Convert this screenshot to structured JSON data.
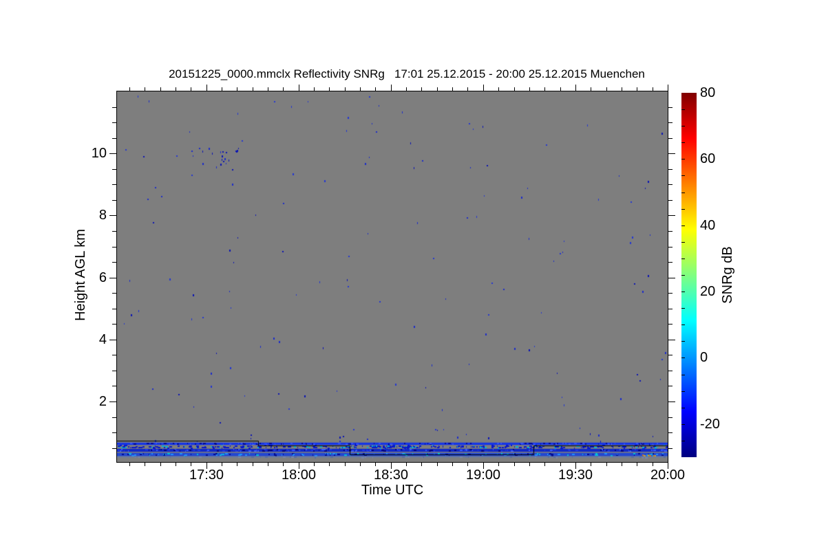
{
  "title": "20151225_0000.mmclx Reflectivity SNRg   17:01 25.12.2015 - 20:00 25.12.2015 Muenchen",
  "chart_data": {
    "type": "heatmap",
    "title": "20151225_0000.mmclx Reflectivity SNRg   17:01 25.12.2015 - 20:00 25.12.2015 Muenchen",
    "file": "20151225_0000.mmclx",
    "quantity": "Reflectivity SNRg",
    "time_start": "17:01 25.12.2015",
    "time_end": "20:00 25.12.2015",
    "station": "Muenchen",
    "xlabel": "Time UTC",
    "ylabel": "Height AGL km",
    "plot_background": "#7e7e7e",
    "axis_color": "#000000",
    "x_axis": {
      "start_minute": 0,
      "end_minute": 179,
      "major_ticks": [
        {
          "minute": 29,
          "label": "17:30"
        },
        {
          "minute": 59,
          "label": "18:00"
        },
        {
          "minute": 89,
          "label": "18:30"
        },
        {
          "minute": 119,
          "label": "19:00"
        },
        {
          "minute": 149,
          "label": "19:30"
        },
        {
          "minute": 179,
          "label": "20:00"
        }
      ],
      "minor_step_minutes": 5,
      "minor_first_minute": 4
    },
    "y_axis": {
      "min_km": 0.05,
      "max_km": 12.0,
      "major_ticks": [
        {
          "km": 2,
          "label": "2"
        },
        {
          "km": 4,
          "label": "4"
        },
        {
          "km": 6,
          "label": "6"
        },
        {
          "km": 8,
          "label": "8"
        },
        {
          "km": 10,
          "label": "10"
        }
      ],
      "minor_step_km": 0.5
    },
    "colorbar": {
      "label": "SNRg dB",
      "min_db": -30,
      "max_db": 80,
      "tick_labels": [
        {
          "db": 80,
          "label": "80"
        },
        {
          "db": 60,
          "label": "60"
        },
        {
          "db": 40,
          "label": "40"
        },
        {
          "db": 20,
          "label": "20"
        },
        {
          "db": 0,
          "label": "0"
        },
        {
          "db": -20,
          "label": "-20"
        }
      ],
      "minor_step_db": 5,
      "colormap": "jet",
      "gradient_stops": [
        {
          "pos": 0.0,
          "color": "#000080"
        },
        {
          "pos": 0.125,
          "color": "#0000ff"
        },
        {
          "pos": 0.25,
          "color": "#0080ff"
        },
        {
          "pos": 0.375,
          "color": "#00ffff"
        },
        {
          "pos": 0.5,
          "color": "#80ff80"
        },
        {
          "pos": 0.625,
          "color": "#ffff00"
        },
        {
          "pos": 0.75,
          "color": "#ff8000"
        },
        {
          "pos": 0.875,
          "color": "#ff0000"
        },
        {
          "pos": 1.0,
          "color": "#800000"
        }
      ]
    },
    "noise": {
      "seed": 20151225,
      "scatter": {
        "count": 135,
        "t_min": 0.5,
        "t_max": 178.5,
        "km_min": 0.9,
        "km_max": 11.9,
        "colors": [
          "#0a14b4",
          "#1b2bca",
          "#2336d2"
        ]
      },
      "cluster": {
        "count": 20,
        "t_min": 24,
        "t_max": 40,
        "km_min": 9.65,
        "km_max": 10.2,
        "colors": [
          "#0a14b4",
          "#1b2bca"
        ]
      },
      "low_extra": {
        "count": 14,
        "t_min": 0.5,
        "t_max": 178.5,
        "km_min": 0.72,
        "km_max": 1.0,
        "colors": [
          "#0a14b4",
          "#1b2bca"
        ]
      }
    },
    "surface_layers": [
      {
        "name": "layer-top",
        "km_top": 0.675,
        "km_bottom": 0.6,
        "color": "#1535e6",
        "dash_colors": [
          "#000898",
          "#3050ff"
        ],
        "dash_count": 110
      },
      {
        "name": "speckle-band",
        "km_top": 0.6,
        "km_bottom": 0.475,
        "color": null,
        "dash_colors": [
          "#0a18c8",
          "#0a18c8",
          "#0a18c8",
          "#00b4d8"
        ],
        "dash_count": 300,
        "dense": {
          "t_start": 83,
          "t_end": 97,
          "extra": 60
        }
      },
      {
        "name": "layer-mid",
        "km_top": 0.475,
        "km_bottom": 0.38,
        "color": "#1028c8",
        "dash_colors": [
          "#000080",
          "#3a5cff",
          "#2038e8"
        ],
        "dash_count": 160
      },
      {
        "name": "layer-low",
        "km_top": 0.345,
        "km_bottom": 0.235,
        "color": "#2247d0",
        "dash_colors": [
          "#00c0d8",
          "#000a90",
          "#1e90ff"
        ],
        "dash_count": 150
      },
      {
        "name": "layer-faint",
        "km_top": 0.235,
        "km_bottom": 0.19,
        "color": "#6e7d9c",
        "dash_colors": [
          "#5a6f9e",
          "#7a86a8"
        ],
        "dash_count": 40
      }
    ],
    "anomaly_specks": {
      "count": 8,
      "t_min": 169.5,
      "t_max": 176,
      "km_top": 0.32,
      "km_bottom": 0.26,
      "colors": [
        "#c07820",
        "#d2691e",
        "#caa030"
      ]
    },
    "boundary_line": {
      "color": "#000000",
      "segments": [
        {
          "t_start": 0,
          "t_end": 45.9,
          "km": 0.74
        },
        {
          "t_start": 45.9,
          "t_end": 75.6,
          "km": 0.575
        },
        {
          "t_start": 75.6,
          "t_end": 135.4,
          "km": 0.285
        },
        {
          "t_start": 135.4,
          "t_end": 179,
          "km": 0.575
        }
      ]
    }
  }
}
